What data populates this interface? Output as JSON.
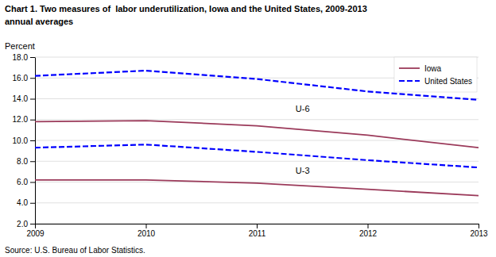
{
  "chart_data": {
    "type": "line",
    "title": "Chart 1. Two measures of  labor underutilization, Iowa and the United States, 2009-2013",
    "subtitle": "annual averages",
    "y_label": "Percent",
    "source": "Source: U.S. Bureau of Labor Statistics.",
    "x": [
      2009,
      2010,
      2011,
      2012,
      2013
    ],
    "series": [
      {
        "name": "Iowa",
        "color": "#9b3a5a",
        "line_style": "solid",
        "values": [
          11.8,
          11.9,
          11.4,
          10.5,
          9.3
        ]
      },
      {
        "name": "United States",
        "color": "#0000ff",
        "line_style": "dashed",
        "values": [
          16.2,
          16.7,
          15.9,
          14.7,
          13.9
        ]
      },
      {
        "name": "Iowa",
        "color": "#9b3a5a",
        "line_style": "solid",
        "values": [
          6.2,
          6.2,
          5.9,
          5.3,
          4.7
        ]
      },
      {
        "name": "United States",
        "color": "#0000ff",
        "line_style": "dashed",
        "values": [
          9.3,
          9.6,
          8.9,
          8.1,
          7.4
        ]
      }
    ],
    "annotations": [
      {
        "text": "U-6",
        "x": 2011.35,
        "y": 13.0
      },
      {
        "text": "U-3",
        "x": 2011.35,
        "y": 7.1
      }
    ],
    "xlim": [
      2009,
      2013
    ],
    "xticks": [
      2009,
      2010,
      2011,
      2012,
      2013
    ],
    "ylim": [
      2.0,
      18.0
    ],
    "yticks": [
      {
        "value": 2.0,
        "label": "2.0"
      },
      {
        "value": 4.0,
        "label": "4.0"
      },
      {
        "value": 6.0,
        "label": "6.0"
      },
      {
        "value": 8.0,
        "label": "8.0"
      },
      {
        "value": 10.0,
        "label": "10.0"
      },
      {
        "value": 12.0,
        "label": "12.0"
      },
      {
        "value": 14.0,
        "label": "14.0"
      },
      {
        "value": 16.0,
        "label": "16.0"
      },
      {
        "value": 18.0,
        "label": "18.0"
      }
    ],
    "grid": true,
    "legend": "top-right"
  }
}
